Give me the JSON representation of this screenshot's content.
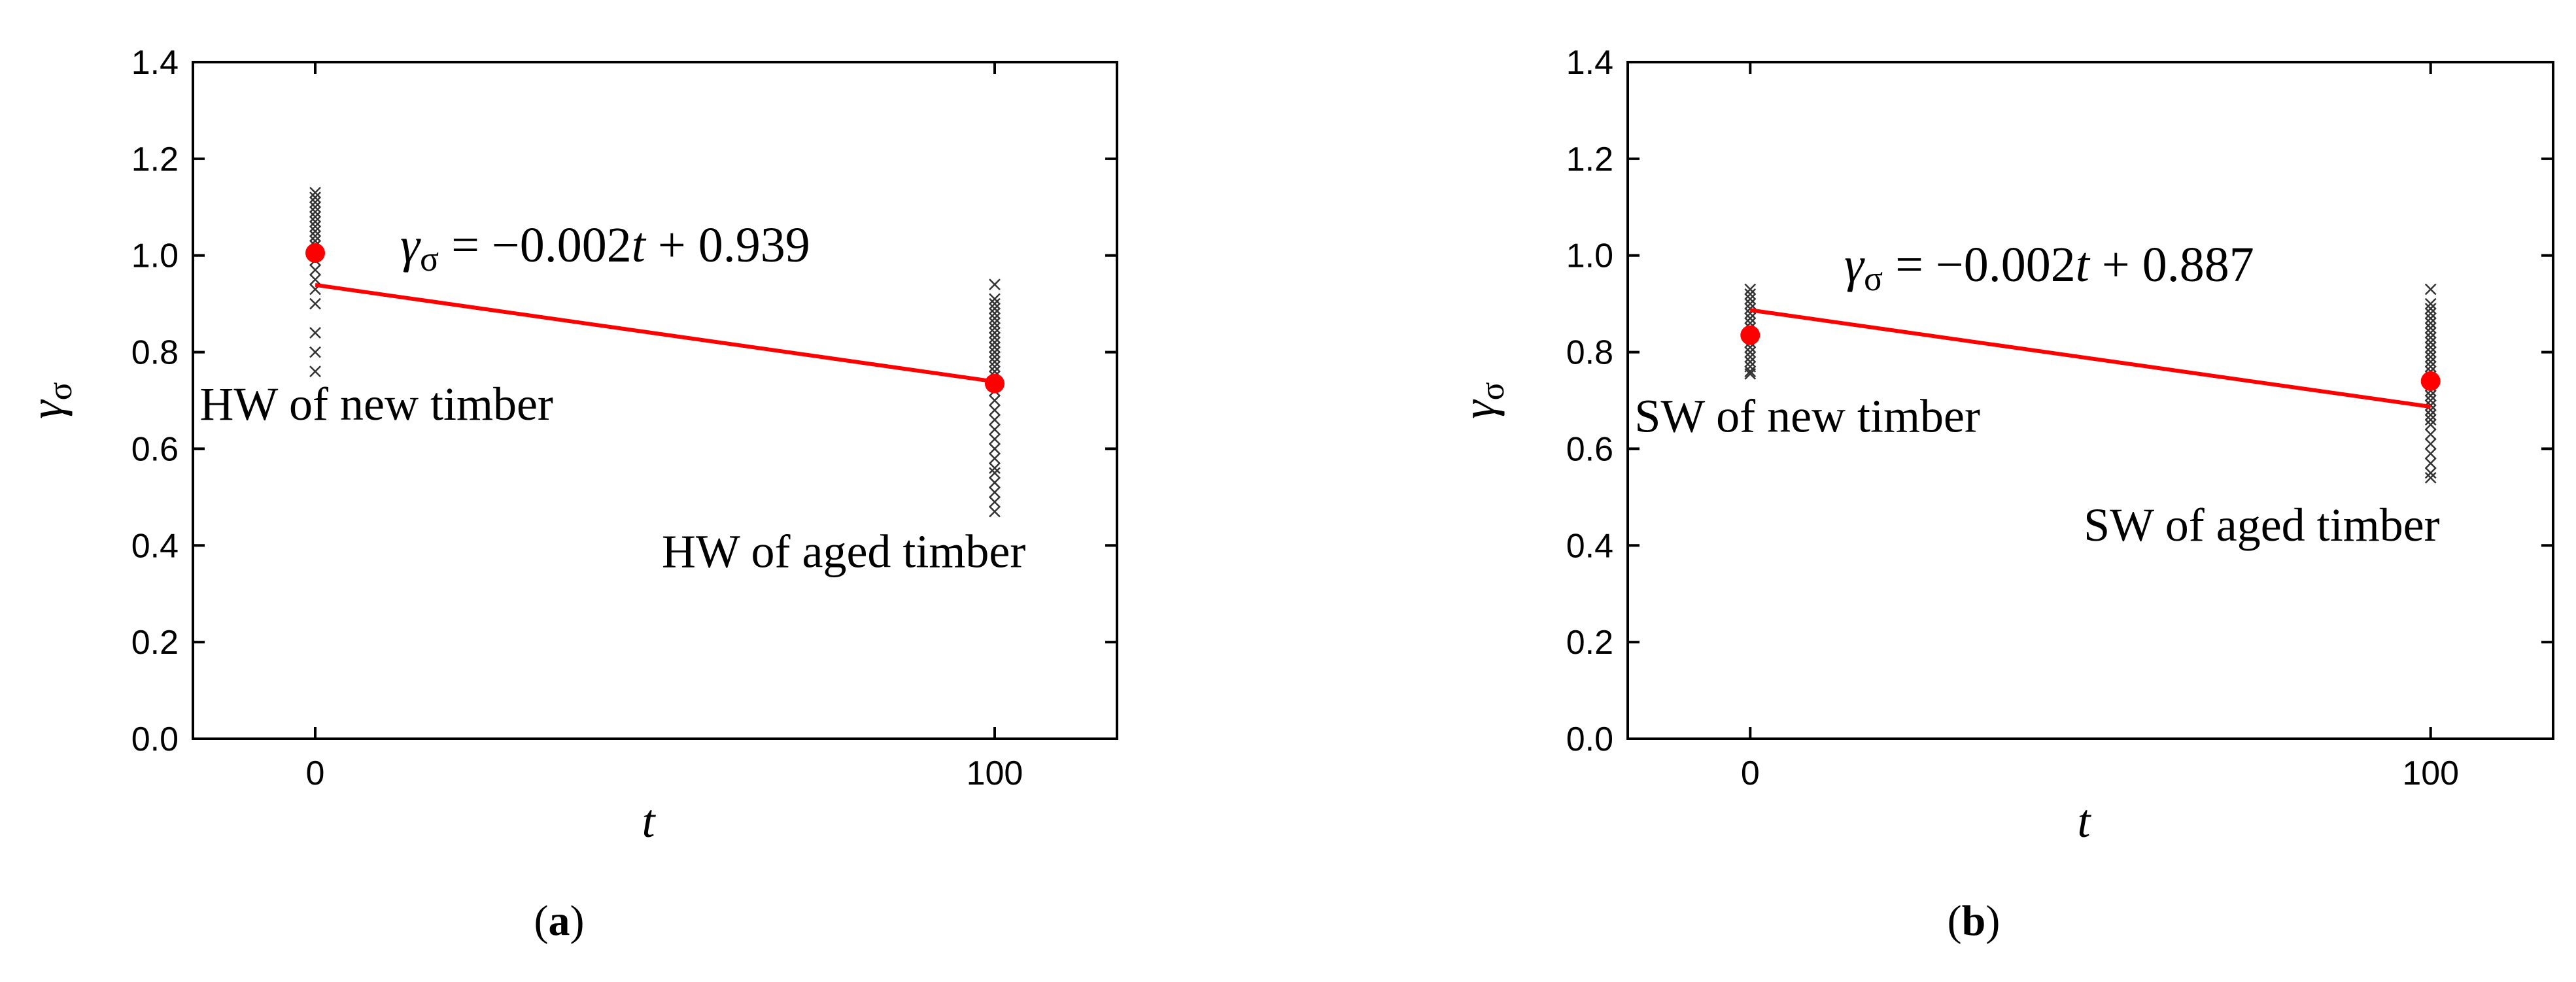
{
  "chart_data": [
    {
      "id": "a",
      "type": "scatter",
      "panel_label": "a",
      "xlabel": "t",
      "ylabel_main": "γ",
      "ylabel_sub": "σ",
      "xticks": [
        0,
        100
      ],
      "yticks": [
        "0.0",
        "0.2",
        "0.4",
        "0.6",
        "0.8",
        "1.0",
        "1.2",
        "1.4"
      ],
      "xlim": [
        -18,
        118
      ],
      "ylim": [
        0,
        1.4
      ],
      "equation": {
        "lhs_main": "γ",
        "lhs_sub": "σ",
        "rhs_part1": " = −0.002",
        "rhs_var": "t",
        "rhs_part2": " + 0.939"
      },
      "fit": {
        "slope": -0.002,
        "intercept": 0.939,
        "x": [
          0,
          100
        ]
      },
      "mean_points": [
        {
          "x": 0,
          "y": 1.005
        },
        {
          "x": 100,
          "y": 0.735
        }
      ],
      "samples": [
        {
          "x": 0,
          "y": [
            1.13,
            1.12,
            1.11,
            1.1,
            1.09,
            1.08,
            1.07,
            1.06,
            1.05,
            1.04,
            1.03,
            1.02,
            1.01,
            0.99,
            0.97,
            0.95,
            0.93,
            0.9,
            0.84,
            0.8,
            0.76
          ]
        },
        {
          "x": 100,
          "y": [
            0.94,
            0.91,
            0.9,
            0.89,
            0.88,
            0.87,
            0.86,
            0.85,
            0.84,
            0.83,
            0.82,
            0.81,
            0.8,
            0.79,
            0.78,
            0.77,
            0.76,
            0.75,
            0.74,
            0.73,
            0.72,
            0.7,
            0.68,
            0.66,
            0.64,
            0.62,
            0.6,
            0.58,
            0.56,
            0.55,
            0.53,
            0.51,
            0.49,
            0.47
          ]
        }
      ],
      "annotations": [
        {
          "text": "HW of new timber",
          "x": -17,
          "y": 0.66
        },
        {
          "text": "HW of aged timber",
          "x": 51,
          "y": 0.355
        }
      ],
      "colors": {
        "fit": "#ff0000",
        "mean": "#ff0000",
        "samples": "#333333"
      }
    },
    {
      "id": "b",
      "type": "scatter",
      "panel_label": "b",
      "xlabel": "t",
      "ylabel_main": "γ",
      "ylabel_sub": "σ",
      "xticks": [
        0,
        100
      ],
      "yticks": [
        "0.0",
        "0.2",
        "0.4",
        "0.6",
        "0.8",
        "1.0",
        "1.2",
        "1.4"
      ],
      "xlim": [
        -18,
        118
      ],
      "ylim": [
        0,
        1.4
      ],
      "equation": {
        "lhs_main": "γ",
        "lhs_sub": "σ",
        "rhs_part1": " = −0.002",
        "rhs_var": "t",
        "rhs_part2": " + 0.887"
      },
      "fit": {
        "slope": -0.002,
        "intercept": 0.887,
        "x": [
          0,
          100
        ]
      },
      "mean_points": [
        {
          "x": 0,
          "y": 0.835
        },
        {
          "x": 100,
          "y": 0.74
        }
      ],
      "samples": [
        {
          "x": 0,
          "y": [
            0.93,
            0.92,
            0.91,
            0.9,
            0.89,
            0.88,
            0.87,
            0.86,
            0.85,
            0.84,
            0.83,
            0.82,
            0.81,
            0.8,
            0.79,
            0.78,
            0.77,
            0.76,
            0.755
          ]
        },
        {
          "x": 100,
          "y": [
            0.93,
            0.9,
            0.89,
            0.88,
            0.87,
            0.86,
            0.85,
            0.84,
            0.83,
            0.82,
            0.81,
            0.8,
            0.79,
            0.78,
            0.77,
            0.76,
            0.75,
            0.74,
            0.73,
            0.72,
            0.71,
            0.7,
            0.69,
            0.68,
            0.67,
            0.66,
            0.65,
            0.63,
            0.61,
            0.59,
            0.57,
            0.55,
            0.54
          ]
        }
      ],
      "annotations": [
        {
          "text": "SW of new timber",
          "x": -17,
          "y": 0.635
        },
        {
          "text": "SW of aged timber",
          "x": 49,
          "y": 0.41
        }
      ],
      "colors": {
        "fit": "#ff0000",
        "mean": "#ff0000",
        "samples": "#333333"
      }
    }
  ]
}
